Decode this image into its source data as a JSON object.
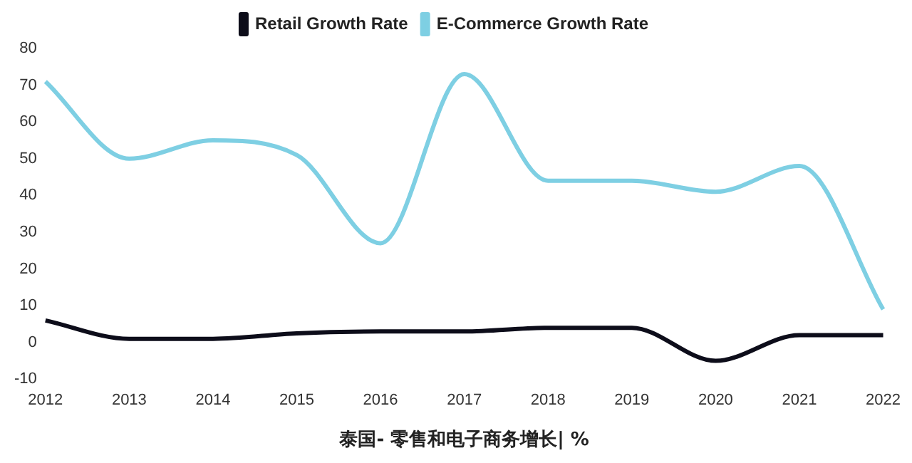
{
  "chart_data": {
    "type": "line",
    "xlabel": "泰国- 零售和电子商务增长| %",
    "categories": [
      "2012",
      "2013",
      "2014",
      "2015",
      "2016",
      "2017",
      "2018",
      "2019",
      "2020",
      "2021",
      "2022"
    ],
    "series": [
      {
        "name": "Retail Growth Rate",
        "color": "#0d0d1a",
        "values": [
          6,
          1,
          1,
          2.5,
          3,
          3,
          4,
          4,
          -5,
          2,
          2
        ]
      },
      {
        "name": "E-Commerce Growth Rate",
        "color": "#7ecfe3",
        "values": [
          71,
          50,
          55,
          51,
          27,
          73,
          44,
          44,
          41,
          48,
          9
        ]
      }
    ],
    "ylim": [
      -10,
      80
    ],
    "yticks": [
      -10,
      0,
      10,
      20,
      30,
      40,
      50,
      60,
      70,
      80
    ],
    "grid": false,
    "legend": "top",
    "marker": "none"
  }
}
